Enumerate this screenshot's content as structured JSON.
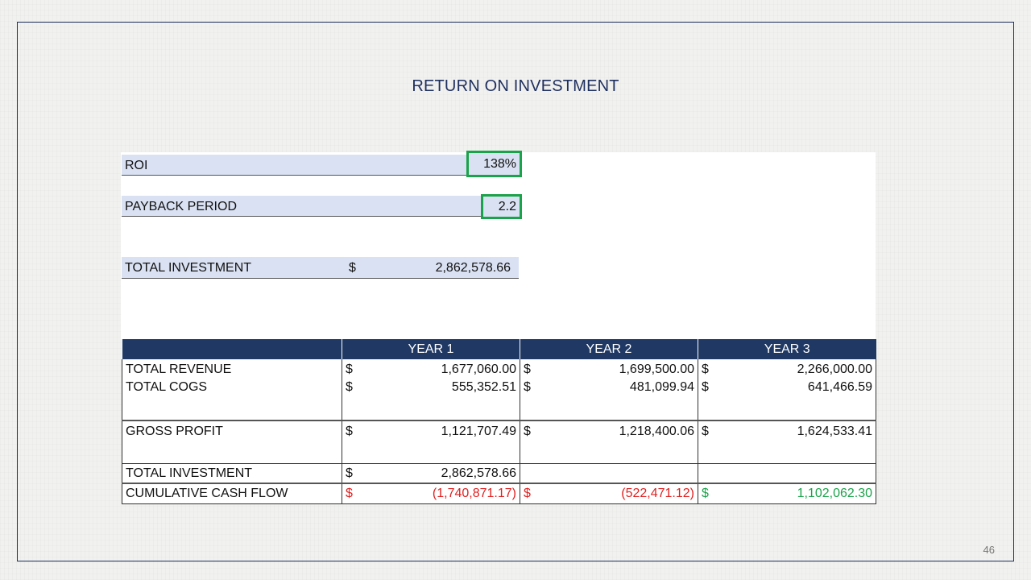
{
  "title": "RETURN ON INVESTMENT",
  "kpis": {
    "roi_label": "ROI",
    "roi_value": "138%",
    "payback_label": "PAYBACK PERIOD",
    "payback_value": "2.2",
    "investment_label": "TOTAL INVESTMENT",
    "investment_currency": "$",
    "investment_value": "2,862,578.66"
  },
  "table": {
    "headers": [
      "",
      "YEAR 1",
      "YEAR 2",
      "YEAR 3"
    ],
    "currency": "$",
    "rows": {
      "revenue": {
        "label": "TOTAL REVENUE",
        "values": [
          "1,677,060.00",
          "1,699,500.00",
          "2,266,000.00"
        ]
      },
      "cogs": {
        "label": "TOTAL COGS",
        "values": [
          "555,352.51",
          "481,099.94",
          "641,466.59"
        ]
      },
      "gross_profit": {
        "label": "GROSS PROFIT",
        "values": [
          "1,121,707.49",
          "1,218,400.06",
          "1,624,533.41"
        ]
      },
      "investment": {
        "label": "TOTAL INVESTMENT",
        "values": [
          "2,862,578.66",
          "",
          ""
        ]
      },
      "cash_flow": {
        "label": "CUMULATIVE CASH FLOW",
        "values": [
          "(1,740,871.17)",
          "(522,471.12)",
          "1,102,062.30"
        ]
      }
    }
  },
  "colors": {
    "negative": "#e02020",
    "positive": "#1aa34a",
    "header_bg": "#1f3864",
    "highlight_border": "#1aa34a"
  },
  "page_number": "46"
}
